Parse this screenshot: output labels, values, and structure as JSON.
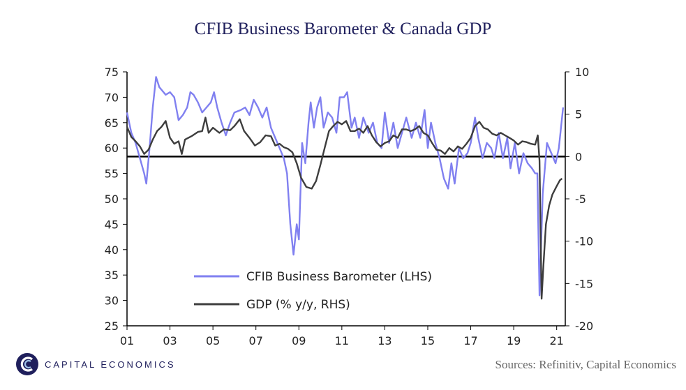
{
  "title": "CFIB Business Barometer & Canada GDP",
  "brand": {
    "name": "CAPITAL ECONOMICS",
    "logo_icon": "capital-economics-logo-icon"
  },
  "source": "Sources: Refinitiv, Capital Economics",
  "colors": {
    "barometer": "#8080f0",
    "gdp": "#3d3d3d",
    "axis": "#000000",
    "brand": "#1f1f5c"
  },
  "chart_data": {
    "type": "line",
    "x_range": [
      2001.0,
      2021.4
    ],
    "x_ticks": [
      {
        "value": 2001,
        "label": "01"
      },
      {
        "value": 2003,
        "label": "03"
      },
      {
        "value": 2005,
        "label": "05"
      },
      {
        "value": 2007,
        "label": "07"
      },
      {
        "value": 2009,
        "label": "09"
      },
      {
        "value": 2011,
        "label": "11"
      },
      {
        "value": 2013,
        "label": "13"
      },
      {
        "value": 2015,
        "label": "15"
      },
      {
        "value": 2017,
        "label": "17"
      },
      {
        "value": 2019,
        "label": "19"
      },
      {
        "value": 2021,
        "label": "21"
      }
    ],
    "y_left": {
      "min": 25,
      "max": 75,
      "ticks": [
        "25",
        "30",
        "35",
        "40",
        "45",
        "50",
        "55",
        "60",
        "65",
        "70",
        "75"
      ]
    },
    "y_right": {
      "min": -20,
      "max": 10,
      "ticks": [
        "-20",
        "-15",
        "-10",
        "-5",
        "0",
        "5",
        "10"
      ]
    },
    "zero_line_right": 0,
    "legend": {
      "position": "bottom-left"
    },
    "series": [
      {
        "name": "CFIB Business Barometer (LHS)",
        "axis": "left",
        "points": [
          [
            2001.0,
            67
          ],
          [
            2001.2,
            63
          ],
          [
            2001.4,
            61
          ],
          [
            2001.6,
            58
          ],
          [
            2001.8,
            55
          ],
          [
            2001.9,
            53
          ],
          [
            2002.05,
            60
          ],
          [
            2002.2,
            68
          ],
          [
            2002.35,
            74
          ],
          [
            2002.5,
            72
          ],
          [
            2002.8,
            70.5
          ],
          [
            2003.0,
            71
          ],
          [
            2003.2,
            70
          ],
          [
            2003.4,
            65.5
          ],
          [
            2003.6,
            66.5
          ],
          [
            2003.8,
            68
          ],
          [
            2003.95,
            71
          ],
          [
            2004.1,
            70.5
          ],
          [
            2004.3,
            69
          ],
          [
            2004.5,
            67
          ],
          [
            2004.7,
            68
          ],
          [
            2004.9,
            69
          ],
          [
            2005.05,
            71
          ],
          [
            2005.2,
            68
          ],
          [
            2005.4,
            65
          ],
          [
            2005.6,
            62.5
          ],
          [
            2005.8,
            65
          ],
          [
            2006.0,
            67
          ],
          [
            2006.3,
            67.5
          ],
          [
            2006.5,
            68
          ],
          [
            2006.7,
            66.5
          ],
          [
            2006.9,
            69.5
          ],
          [
            2007.1,
            68
          ],
          [
            2007.3,
            66
          ],
          [
            2007.5,
            68
          ],
          [
            2007.7,
            64
          ],
          [
            2007.9,
            62
          ],
          [
            2008.1,
            60
          ],
          [
            2008.3,
            58
          ],
          [
            2008.45,
            55
          ],
          [
            2008.6,
            45
          ],
          [
            2008.75,
            39
          ],
          [
            2008.9,
            45
          ],
          [
            2009.0,
            42
          ],
          [
            2009.15,
            61
          ],
          [
            2009.3,
            57
          ],
          [
            2009.45,
            65
          ],
          [
            2009.55,
            69
          ],
          [
            2009.7,
            64
          ],
          [
            2009.85,
            68
          ],
          [
            2010.0,
            70
          ],
          [
            2010.15,
            64
          ],
          [
            2010.35,
            67
          ],
          [
            2010.55,
            66
          ],
          [
            2010.75,
            63
          ],
          [
            2010.9,
            70
          ],
          [
            2011.1,
            70
          ],
          [
            2011.25,
            71
          ],
          [
            2011.45,
            64
          ],
          [
            2011.6,
            66
          ],
          [
            2011.8,
            62
          ],
          [
            2012.0,
            66
          ],
          [
            2012.25,
            63
          ],
          [
            2012.45,
            65
          ],
          [
            2012.65,
            61
          ],
          [
            2012.85,
            60
          ],
          [
            2013.0,
            67
          ],
          [
            2013.2,
            61
          ],
          [
            2013.4,
            65
          ],
          [
            2013.6,
            60
          ],
          [
            2013.8,
            63
          ],
          [
            2014.0,
            66
          ],
          [
            2014.25,
            62
          ],
          [
            2014.45,
            65
          ],
          [
            2014.65,
            62
          ],
          [
            2014.85,
            67.5
          ],
          [
            2015.0,
            60
          ],
          [
            2015.15,
            65
          ],
          [
            2015.35,
            61
          ],
          [
            2015.55,
            58
          ],
          [
            2015.75,
            54
          ],
          [
            2015.95,
            52
          ],
          [
            2016.1,
            57
          ],
          [
            2016.25,
            53
          ],
          [
            2016.45,
            60
          ],
          [
            2016.65,
            58
          ],
          [
            2016.85,
            59
          ],
          [
            2017.0,
            61
          ],
          [
            2017.2,
            66
          ],
          [
            2017.35,
            62
          ],
          [
            2017.55,
            58
          ],
          [
            2017.75,
            61
          ],
          [
            2017.95,
            60
          ],
          [
            2018.1,
            58
          ],
          [
            2018.3,
            63
          ],
          [
            2018.5,
            58
          ],
          [
            2018.7,
            62
          ],
          [
            2018.85,
            56
          ],
          [
            2019.05,
            61
          ],
          [
            2019.25,
            55
          ],
          [
            2019.45,
            59
          ],
          [
            2019.65,
            57
          ],
          [
            2019.85,
            56
          ],
          [
            2020.0,
            55
          ],
          [
            2020.1,
            55
          ],
          [
            2020.2,
            31
          ],
          [
            2020.35,
            51
          ],
          [
            2020.55,
            61
          ],
          [
            2020.75,
            59
          ],
          [
            2020.95,
            57
          ],
          [
            2021.1,
            60
          ],
          [
            2021.3,
            68
          ]
        ]
      },
      {
        "name": "GDP (% y/y, RHS)",
        "axis": "right",
        "points": [
          [
            2001.0,
            3.5
          ],
          [
            2001.2,
            2.3
          ],
          [
            2001.4,
            1.8
          ],
          [
            2001.6,
            1.2
          ],
          [
            2001.8,
            0.3
          ],
          [
            2002.0,
            0.8
          ],
          [
            2002.2,
            2
          ],
          [
            2002.4,
            3
          ],
          [
            2002.6,
            3.5
          ],
          [
            2002.8,
            4.2
          ],
          [
            2003.0,
            2.2
          ],
          [
            2003.2,
            1.5
          ],
          [
            2003.4,
            1.8
          ],
          [
            2003.55,
            0.3
          ],
          [
            2003.7,
            2
          ],
          [
            2004.0,
            2.4
          ],
          [
            2004.3,
            2.9
          ],
          [
            2004.5,
            3
          ],
          [
            2004.65,
            4.6
          ],
          [
            2004.8,
            2.8
          ],
          [
            2005.0,
            3.4
          ],
          [
            2005.3,
            2.8
          ],
          [
            2005.5,
            3.2
          ],
          [
            2005.8,
            3.1
          ],
          [
            2006.0,
            3.6
          ],
          [
            2006.25,
            4.4
          ],
          [
            2006.45,
            3
          ],
          [
            2006.7,
            2.2
          ],
          [
            2006.95,
            1.3
          ],
          [
            2007.2,
            1.7
          ],
          [
            2007.45,
            2.5
          ],
          [
            2007.7,
            2.4
          ],
          [
            2007.9,
            1.3
          ],
          [
            2008.1,
            1.5
          ],
          [
            2008.3,
            1.1
          ],
          [
            2008.5,
            0.9
          ],
          [
            2008.7,
            0.5
          ],
          [
            2008.9,
            -0.8
          ],
          [
            2009.1,
            -2.5
          ],
          [
            2009.35,
            -3.6
          ],
          [
            2009.6,
            -3.8
          ],
          [
            2009.8,
            -2.9
          ],
          [
            2010.0,
            -1
          ],
          [
            2010.2,
            1
          ],
          [
            2010.4,
            3
          ],
          [
            2010.6,
            3.6
          ],
          [
            2010.8,
            4.1
          ],
          [
            2011.0,
            3.8
          ],
          [
            2011.2,
            4.2
          ],
          [
            2011.4,
            3
          ],
          [
            2011.6,
            3
          ],
          [
            2011.8,
            3.3
          ],
          [
            2012.0,
            2.8
          ],
          [
            2012.2,
            3.6
          ],
          [
            2012.4,
            2.5
          ],
          [
            2012.6,
            1.7
          ],
          [
            2012.8,
            1.2
          ],
          [
            2013.0,
            1.6
          ],
          [
            2013.2,
            1.8
          ],
          [
            2013.4,
            2.5
          ],
          [
            2013.6,
            2.2
          ],
          [
            2013.8,
            3.2
          ],
          [
            2014.0,
            3.2
          ],
          [
            2014.2,
            3
          ],
          [
            2014.4,
            3.2
          ],
          [
            2014.6,
            3.6
          ],
          [
            2014.8,
            2.8
          ],
          [
            2015.0,
            2.5
          ],
          [
            2015.2,
            1.6
          ],
          [
            2015.4,
            0.8
          ],
          [
            2015.6,
            0.7
          ],
          [
            2015.8,
            0.3
          ],
          [
            2016.0,
            1
          ],
          [
            2016.2,
            0.6
          ],
          [
            2016.4,
            1.2
          ],
          [
            2016.6,
            0.9
          ],
          [
            2016.8,
            1.5
          ],
          [
            2017.0,
            2.2
          ],
          [
            2017.2,
            3.6
          ],
          [
            2017.4,
            4.1
          ],
          [
            2017.6,
            3.4
          ],
          [
            2017.8,
            3.2
          ],
          [
            2018.0,
            2.7
          ],
          [
            2018.2,
            2.5
          ],
          [
            2018.4,
            2.8
          ],
          [
            2018.6,
            2.5
          ],
          [
            2018.8,
            2.2
          ],
          [
            2019.0,
            1.9
          ],
          [
            2019.2,
            1.4
          ],
          [
            2019.4,
            1.8
          ],
          [
            2019.6,
            1.7
          ],
          [
            2019.8,
            1.5
          ],
          [
            2020.0,
            1.4
          ],
          [
            2020.12,
            2.5
          ],
          [
            2020.2,
            -0.5
          ],
          [
            2020.3,
            -16.8
          ],
          [
            2020.38,
            -13
          ],
          [
            2020.5,
            -8
          ],
          [
            2020.65,
            -5.8
          ],
          [
            2020.8,
            -4.5
          ],
          [
            2021.0,
            -3.5
          ],
          [
            2021.15,
            -2.8
          ],
          [
            2021.25,
            -2.6
          ]
        ]
      }
    ]
  }
}
